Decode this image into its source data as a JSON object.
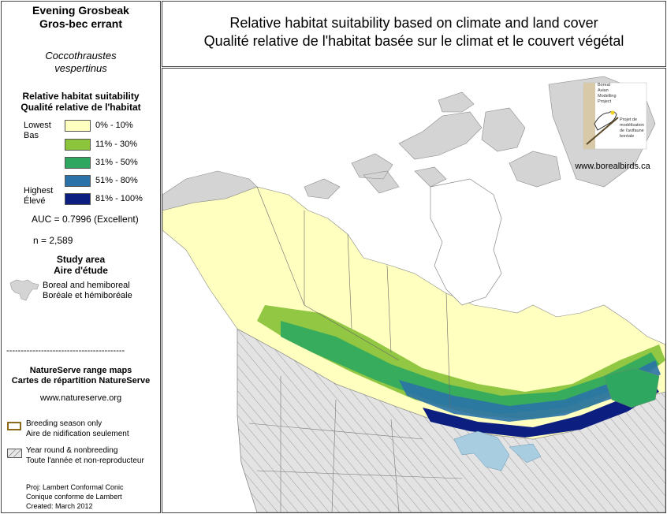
{
  "sidebar": {
    "species_en": "Evening Grosbeak",
    "species_fr": "Gros-bec errant",
    "scientific_line1": "Coccothraustes",
    "scientific_line2": "vespertinus",
    "legend_title_en": "Relative habitat suitability",
    "legend_title_fr": "Qualité relative de l'habitat",
    "low_en": "Lowest",
    "low_fr": "Bas",
    "high_en": "Highest",
    "high_fr": "Élevé",
    "classes": [
      {
        "label": "0% - 10%",
        "color": "#ffffc0"
      },
      {
        "label": "11% - 30%",
        "color": "#8cc43c"
      },
      {
        "label": "31% - 50%",
        "color": "#2ea860"
      },
      {
        "label": "51% - 80%",
        "color": "#2a72a8"
      },
      {
        "label": "81% - 100%",
        "color": "#0c1f80"
      }
    ],
    "auc": "AUC = 0.7996 (Excellent)",
    "n": "n = 2,589",
    "study_title_en": "Study area",
    "study_title_fr": "Aire d'étude",
    "study_en": "Boreal and hemiboreal",
    "study_fr": "Boréale et hémiboréale",
    "divider": "-----------------------------------------",
    "ns_title_en": "NatureServe range maps",
    "ns_title_fr": "Cartes de répartition NatureServe",
    "ns_url": "www.natureserve.org",
    "breeding_en": "Breeding season only",
    "breeding_fr": "Aire de nidification seulement",
    "yearround_en": "Year round & nonbreeding",
    "yearround_fr": "Toute l'année et non-reproducteur",
    "proj_en": "Proj: Lambert Conformal Conic",
    "proj_fr": "Conique conforme de Lambert",
    "created": "Created:  March 2012"
  },
  "header": {
    "title_en": "Relative habitat suitability based on climate and land cover",
    "title_fr": "Qualité relative de l'habitat basée sur le climat et le couvert végétal"
  },
  "map": {
    "logo_text": [
      "Boreal",
      "Avian",
      "Modelling",
      "Project",
      "Projet de",
      "modélisation",
      "de l'avifaune",
      "boréale"
    ],
    "url": "www.borealbirds.ca",
    "colors": {
      "water": "#ffffff",
      "land_outside": "#d4d4d4",
      "study_area": "#ffffc0",
      "breeding_border": "#8b6a1a",
      "lake": "#a9cde0"
    }
  }
}
